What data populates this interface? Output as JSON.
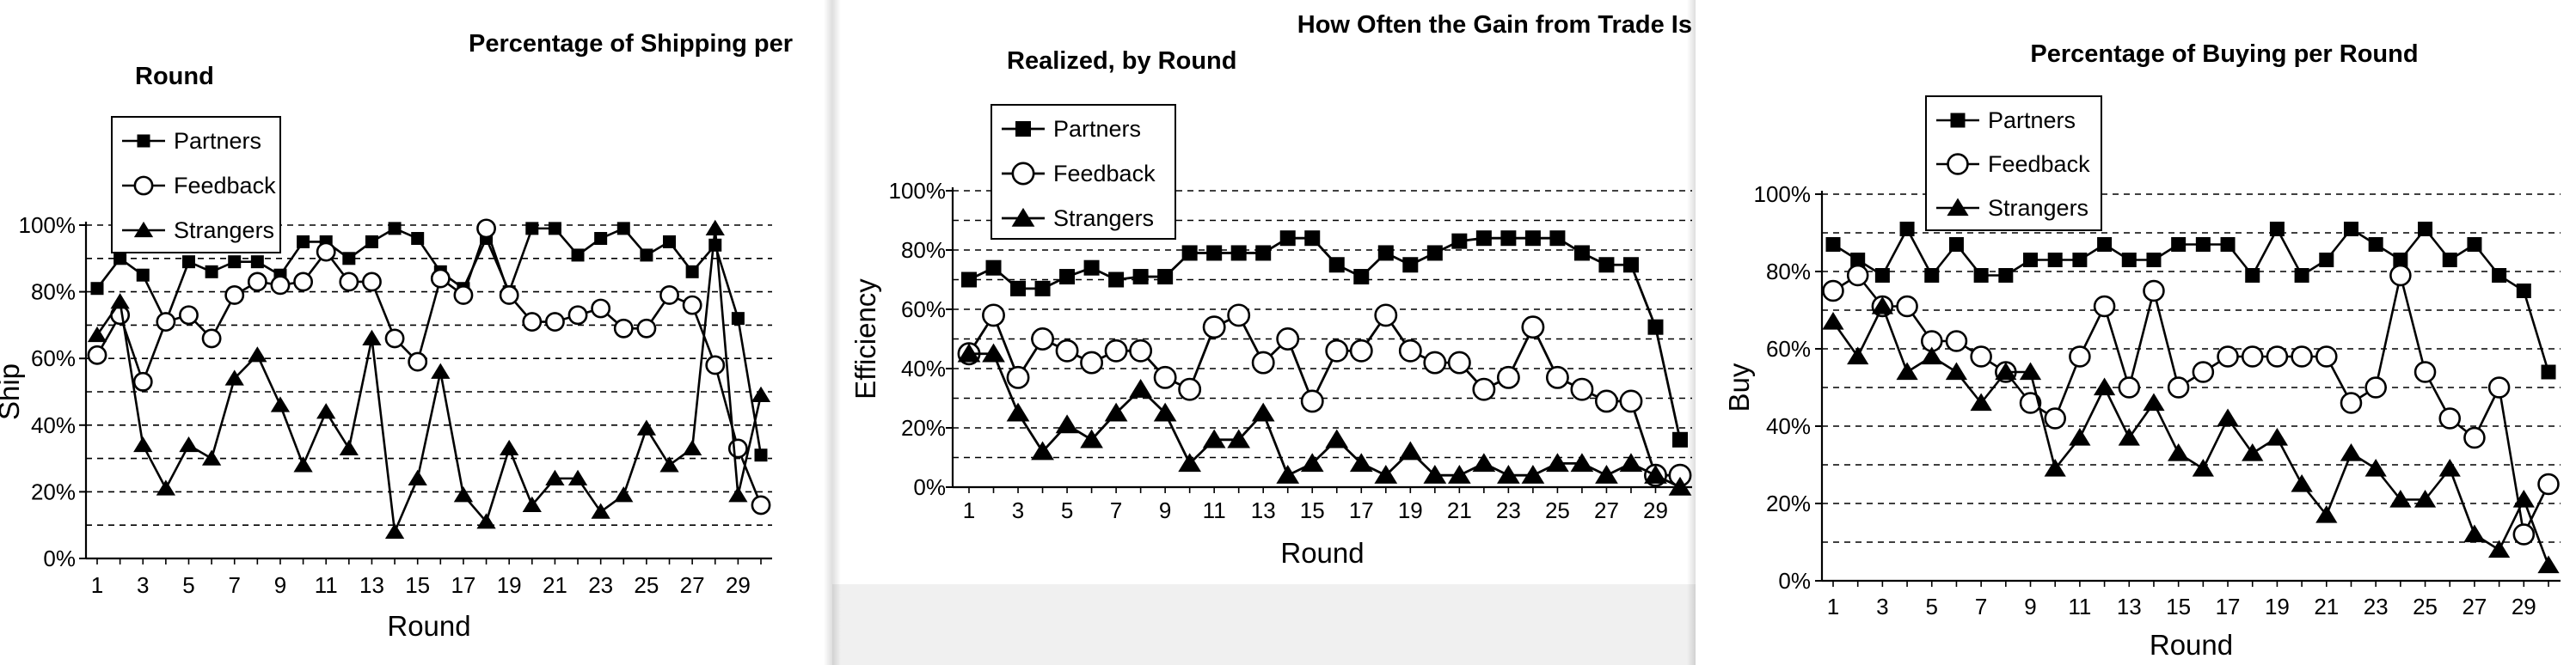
{
  "chart_data": [
    {
      "type": "line",
      "title_lines": [
        "Percentage of Shipping per",
        "Round"
      ],
      "xlabel": "Round",
      "ylabel": "Ship",
      "yticks": [
        "0%",
        "20%",
        "40%",
        "60%",
        "80%",
        "100%"
      ],
      "xticks": [
        "1",
        "3",
        "5",
        "7",
        "9",
        "11",
        "13",
        "15",
        "17",
        "19",
        "21",
        "23",
        "25",
        "27",
        "29"
      ],
      "xlim": [
        1,
        30
      ],
      "ylim": [
        0,
        100
      ],
      "grid": "dashed horizontal every 10%",
      "legend_position": "top-left",
      "series": [
        {
          "name": "Partners",
          "marker": "square",
          "values": [
            81,
            90,
            85,
            71,
            89,
            86,
            89,
            89,
            85,
            95,
            95,
            90,
            95,
            99,
            96,
            86,
            81,
            96,
            80,
            99,
            99,
            91,
            96,
            99,
            91,
            95,
            86,
            94,
            72,
            31
          ]
        },
        {
          "name": "Feedback",
          "marker": "circle",
          "values": [
            61,
            73,
            53,
            71,
            73,
            66,
            79,
            83,
            82,
            83,
            92,
            83,
            83,
            66,
            59,
            84,
            79,
            99,
            79,
            71,
            71,
            73,
            75,
            69,
            69,
            79,
            76,
            58,
            33,
            16
          ]
        },
        {
          "name": "Strangers",
          "marker": "triangle",
          "values": [
            67,
            77,
            34,
            21,
            34,
            30,
            54,
            61,
            46,
            28,
            44,
            33,
            66,
            8,
            24,
            56,
            19,
            11,
            33,
            16,
            24,
            24,
            14,
            19,
            39,
            28,
            33,
            99,
            19,
            49
          ]
        }
      ]
    },
    {
      "type": "line",
      "title_lines": [
        "How Often the Gain from Trade Is",
        "Realized, by Round"
      ],
      "xlabel": "Round",
      "ylabel": "Efficiency",
      "yticks": [
        "0%",
        "20%",
        "40%",
        "60%",
        "80%",
        "100%"
      ],
      "xticks": [
        "1",
        "3",
        "5",
        "7",
        "9",
        "11",
        "13",
        "15",
        "17",
        "19",
        "21",
        "23",
        "25",
        "27",
        "29"
      ],
      "xlim": [
        1,
        30
      ],
      "ylim": [
        0,
        100
      ],
      "grid": "dashed horizontal every 10%",
      "legend_position": "top-left",
      "series": [
        {
          "name": "Partners",
          "marker": "square",
          "values": [
            70,
            74,
            67,
            67,
            71,
            74,
            70,
            71,
            71,
            79,
            79,
            79,
            79,
            84,
            84,
            75,
            71,
            79,
            75,
            79,
            83,
            84,
            84,
            84,
            84,
            79,
            75,
            75,
            54,
            16
          ]
        },
        {
          "name": "Feedback",
          "marker": "circle",
          "values": [
            45,
            58,
            37,
            50,
            46,
            42,
            46,
            46,
            37,
            33,
            54,
            58,
            42,
            50,
            29,
            46,
            46,
            58,
            46,
            42,
            42,
            33,
            37,
            54,
            37,
            33,
            29,
            29,
            4,
            4
          ]
        },
        {
          "name": "Strangers",
          "marker": "triangle",
          "values": [
            45,
            45,
            25,
            12,
            21,
            16,
            25,
            33,
            25,
            8,
            16,
            16,
            25,
            4,
            8,
            16,
            8,
            4,
            12,
            4,
            4,
            8,
            4,
            4,
            8,
            8,
            4,
            8,
            4,
            0
          ]
        }
      ]
    },
    {
      "type": "line",
      "title_lines": [
        "Percentage of Buying per Round"
      ],
      "xlabel": "Round",
      "ylabel": "Buy",
      "yticks": [
        "0%",
        "20%",
        "40%",
        "60%",
        "80%",
        "100%"
      ],
      "xticks": [
        "1",
        "3",
        "5",
        "7",
        "9",
        "11",
        "13",
        "15",
        "17",
        "19",
        "21",
        "23",
        "25",
        "27",
        "29"
      ],
      "xlim": [
        1,
        30
      ],
      "ylim": [
        0,
        100
      ],
      "grid": "dashed horizontal every 10%",
      "legend_position": "top-left",
      "series": [
        {
          "name": "Partners",
          "marker": "square",
          "values": [
            87,
            83,
            79,
            91,
            79,
            87,
            79,
            79,
            83,
            83,
            83,
            87,
            83,
            83,
            87,
            87,
            87,
            79,
            91,
            79,
            83,
            91,
            87,
            83,
            91,
            83,
            87,
            79,
            75,
            54
          ]
        },
        {
          "name": "Feedback",
          "marker": "circle",
          "values": [
            75,
            79,
            71,
            71,
            62,
            62,
            58,
            54,
            46,
            42,
            58,
            71,
            50,
            75,
            50,
            54,
            58,
            58,
            58,
            58,
            58,
            46,
            50,
            79,
            54,
            42,
            37,
            50,
            12,
            25
          ]
        },
        {
          "name": "Strangers",
          "marker": "triangle",
          "values": [
            67,
            58,
            71,
            54,
            58,
            54,
            46,
            54,
            54,
            29,
            37,
            50,
            37,
            46,
            33,
            29,
            42,
            33,
            37,
            25,
            17,
            33,
            29,
            21,
            21,
            29,
            12,
            8,
            21,
            4
          ]
        }
      ]
    }
  ]
}
